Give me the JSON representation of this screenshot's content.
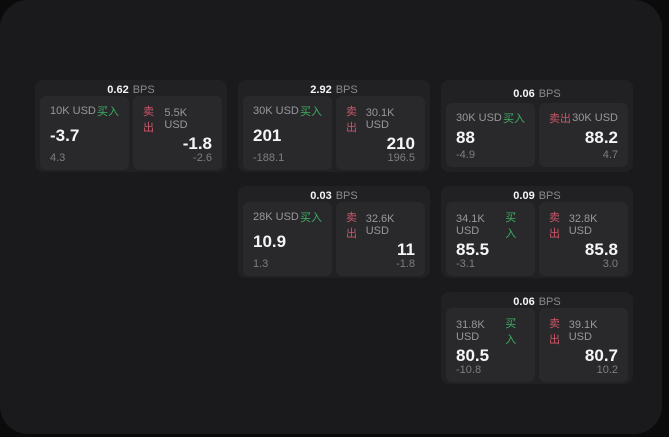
{
  "colors": {
    "page_bg": "#0b0b0b",
    "panel_bg": "#1a1a1c",
    "card_bg": "#212123",
    "tile_bg": "#29292c",
    "text_primary": "#f5f5f5",
    "text_secondary": "#98989c",
    "text_muted": "#7e7e82",
    "buy_green": "#3fae63",
    "sell_red": "#cc5668"
  },
  "labels": {
    "buy": "买入",
    "sell": "卖出",
    "bps_unit": "BPS"
  },
  "cards": [
    {
      "row": 1,
      "col": 1,
      "bps": "0.62",
      "buy": {
        "amount": "10K USD",
        "value": "-3.7",
        "delta": "4.3"
      },
      "sell": {
        "amount": "5.5K USD",
        "value": "-1.8",
        "delta": "-2.6"
      }
    },
    {
      "row": 1,
      "col": 2,
      "bps": "2.92",
      "buy": {
        "amount": "30K USD",
        "value": "201",
        "delta": "-188.1"
      },
      "sell": {
        "amount": "30.1K USD",
        "value": "210",
        "delta": "196.5"
      }
    },
    {
      "row": 1,
      "col": 3,
      "bps": "0.06",
      "buy": {
        "amount": "30K USD",
        "value": "88",
        "delta": "-4.9"
      },
      "sell": {
        "amount": "30K USD",
        "value": "88.2",
        "delta": "4.7"
      }
    },
    {
      "row": 2,
      "col": 2,
      "bps": "0.03",
      "buy": {
        "amount": "28K USD",
        "value": "10.9",
        "delta": "1.3"
      },
      "sell": {
        "amount": "32.6K USD",
        "value": "11",
        "delta": "-1.8"
      }
    },
    {
      "row": 2,
      "col": 3,
      "bps": "0.09",
      "buy": {
        "amount": "34.1K USD",
        "value": "85.5",
        "delta": "-3.1"
      },
      "sell": {
        "amount": "32.8K USD",
        "value": "85.8",
        "delta": "3.0"
      }
    },
    {
      "row": 3,
      "col": 3,
      "bps": "0.06",
      "buy": {
        "amount": "31.8K USD",
        "value": "80.5",
        "delta": "-10.8"
      },
      "sell": {
        "amount": "39.1K USD",
        "value": "80.7",
        "delta": "10.2"
      }
    }
  ]
}
